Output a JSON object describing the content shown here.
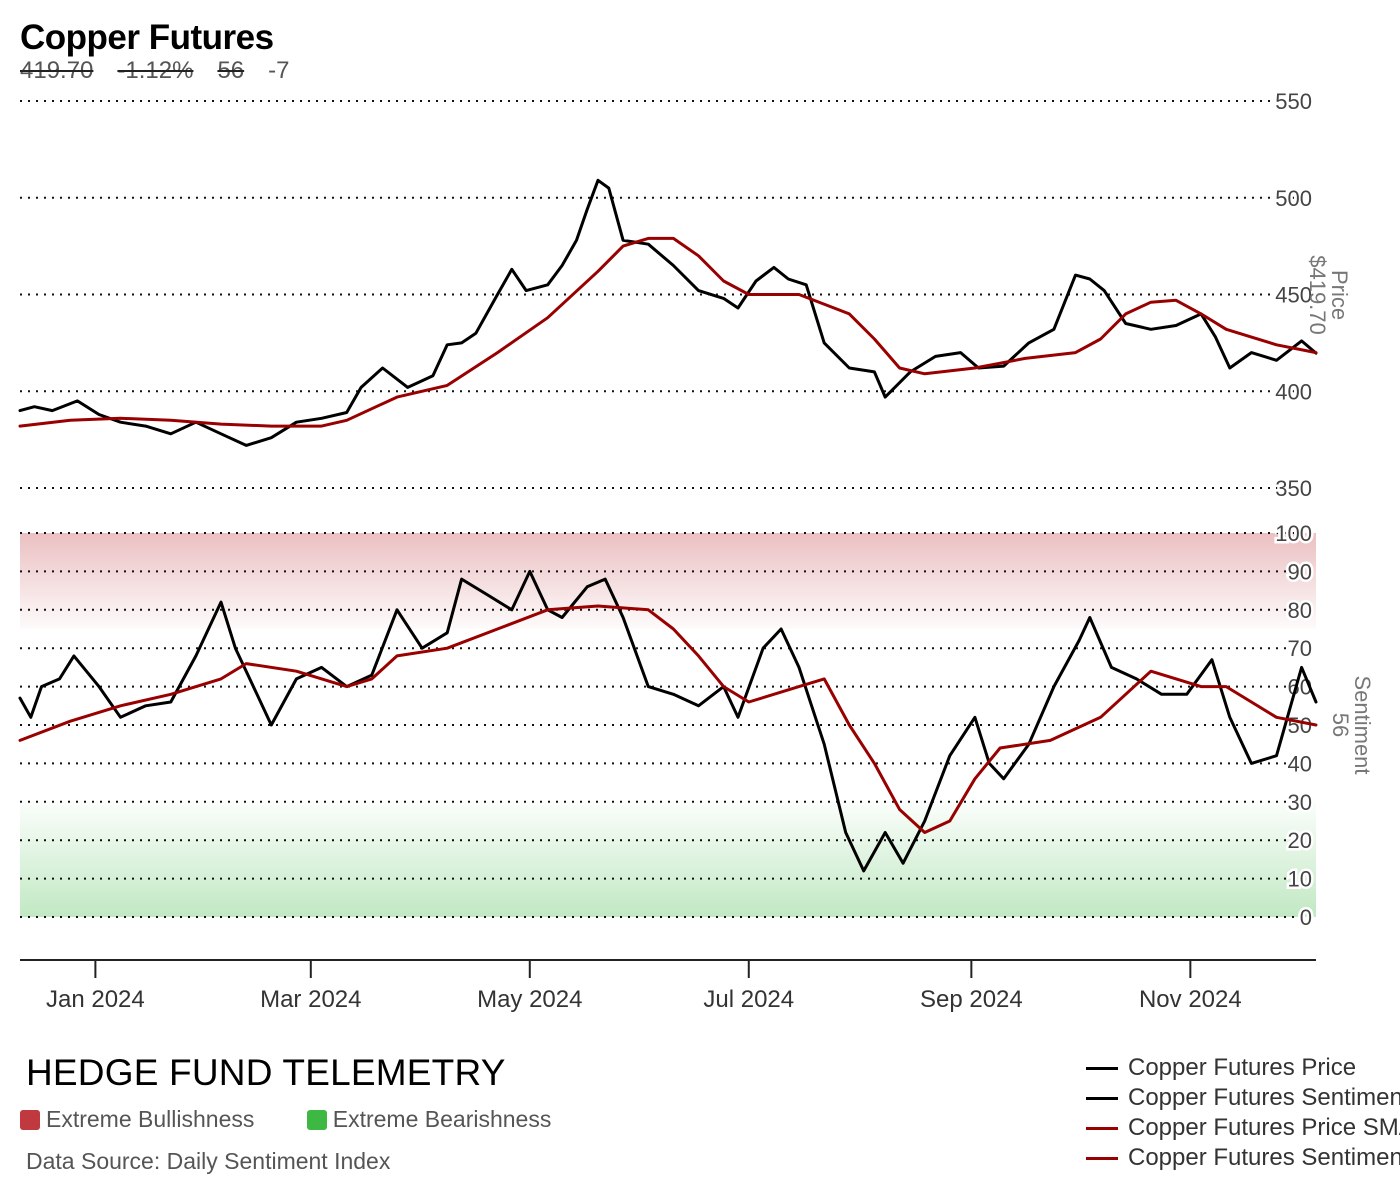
{
  "header": {
    "title": "Copper Futures",
    "stat_price": "419.70",
    "stat_change": "-1.12%",
    "stat_sentiment": "56",
    "stat_sentiment_change": "-7"
  },
  "footer": {
    "brand": "HEDGE FUND TELEMETRY",
    "bullish_label": "Extreme Bullishness",
    "bearish_label": "Extreme Bearishness",
    "source": "Data Source: Daily Sentiment Index",
    "bullish_color": "#c0393f",
    "bearish_color": "#3db843"
  },
  "legend": {
    "items": [
      {
        "label": "Copper Futures Price",
        "color": "#000000"
      },
      {
        "label": "Copper Futures Sentiment",
        "color": "#000000"
      },
      {
        "label": "Copper Futures Price SMA",
        "color": "#990000"
      },
      {
        "label": "Copper Futures Sentiment SMA",
        "color": "#990000"
      }
    ]
  },
  "chart_data": {
    "type": "line",
    "x_start": "2023-12-11",
    "x_end": "2024-12-06",
    "x_ticks": [
      {
        "date": "2024-01-01",
        "label": "Jan 2024"
      },
      {
        "date": "2024-03-01",
        "label": "Mar 2024"
      },
      {
        "date": "2024-05-01",
        "label": "May 2024"
      },
      {
        "date": "2024-07-01",
        "label": "Jul 2024"
      },
      {
        "date": "2024-09-01",
        "label": "Sep 2024"
      },
      {
        "date": "2024-11-01",
        "label": "Nov 2024"
      }
    ],
    "price_panel": {
      "axis_label": "Price",
      "last_value_label": "$419.70",
      "ylim": [
        350,
        550
      ],
      "ticks": [
        550,
        500,
        450,
        400,
        350
      ],
      "grid": "dotted",
      "series": [
        {
          "color": "#000000",
          "points": [
            [
              "2023-12-11",
              390
            ],
            [
              "2023-12-15",
              392
            ],
            [
              "2023-12-20",
              390
            ],
            [
              "2023-12-27",
              395
            ],
            [
              "2024-01-02",
              388
            ],
            [
              "2024-01-08",
              384
            ],
            [
              "2024-01-15",
              382
            ],
            [
              "2024-01-22",
              378
            ],
            [
              "2024-01-29",
              384
            ],
            [
              "2024-02-05",
              378
            ],
            [
              "2024-02-12",
              372
            ],
            [
              "2024-02-19",
              376
            ],
            [
              "2024-02-26",
              384
            ],
            [
              "2024-03-04",
              386
            ],
            [
              "2024-03-11",
              389
            ],
            [
              "2024-03-15",
              402
            ],
            [
              "2024-03-21",
              412
            ],
            [
              "2024-03-28",
              402
            ],
            [
              "2024-04-04",
              408
            ],
            [
              "2024-04-08",
              424
            ],
            [
              "2024-04-12",
              425
            ],
            [
              "2024-04-16",
              430
            ],
            [
              "2024-04-22",
              450
            ],
            [
              "2024-04-26",
              463
            ],
            [
              "2024-04-30",
              452
            ],
            [
              "2024-05-06",
              455
            ],
            [
              "2024-05-10",
              465
            ],
            [
              "2024-05-14",
              478
            ],
            [
              "2024-05-17",
              494
            ],
            [
              "2024-05-20",
              509
            ],
            [
              "2024-05-23",
              505
            ],
            [
              "2024-05-27",
              478
            ],
            [
              "2024-06-03",
              476
            ],
            [
              "2024-06-10",
              465
            ],
            [
              "2024-06-17",
              452
            ],
            [
              "2024-06-24",
              448
            ],
            [
              "2024-06-28",
              443
            ],
            [
              "2024-07-03",
              457
            ],
            [
              "2024-07-08",
              464
            ],
            [
              "2024-07-12",
              458
            ],
            [
              "2024-07-17",
              455
            ],
            [
              "2024-07-22",
              425
            ],
            [
              "2024-07-29",
              412
            ],
            [
              "2024-08-05",
              410
            ],
            [
              "2024-08-08",
              397
            ],
            [
              "2024-08-15",
              410
            ],
            [
              "2024-08-22",
              418
            ],
            [
              "2024-08-29",
              420
            ],
            [
              "2024-09-03",
              412
            ],
            [
              "2024-09-10",
              413
            ],
            [
              "2024-09-17",
              425
            ],
            [
              "2024-09-24",
              432
            ],
            [
              "2024-09-30",
              460
            ],
            [
              "2024-10-04",
              458
            ],
            [
              "2024-10-08",
              452
            ],
            [
              "2024-10-14",
              435
            ],
            [
              "2024-10-21",
              432
            ],
            [
              "2024-10-28",
              434
            ],
            [
              "2024-11-04",
              440
            ],
            [
              "2024-11-08",
              428
            ],
            [
              "2024-11-12",
              412
            ],
            [
              "2024-11-18",
              420
            ],
            [
              "2024-11-25",
              416
            ],
            [
              "2024-12-02",
              426
            ],
            [
              "2024-12-06",
              419.7
            ]
          ]
        },
        {
          "color": "#990000",
          "points": [
            [
              "2023-12-11",
              382
            ],
            [
              "2023-12-25",
              385
            ],
            [
              "2024-01-08",
              386
            ],
            [
              "2024-01-22",
              385
            ],
            [
              "2024-02-05",
              383
            ],
            [
              "2024-02-19",
              382
            ],
            [
              "2024-03-04",
              382
            ],
            [
              "2024-03-11",
              385
            ],
            [
              "2024-03-25",
              397
            ],
            [
              "2024-04-08",
              403
            ],
            [
              "2024-04-22",
              420
            ],
            [
              "2024-05-06",
              438
            ],
            [
              "2024-05-20",
              462
            ],
            [
              "2024-05-27",
              475
            ],
            [
              "2024-06-03",
              479
            ],
            [
              "2024-06-10",
              479
            ],
            [
              "2024-06-17",
              470
            ],
            [
              "2024-06-24",
              457
            ],
            [
              "2024-07-01",
              450
            ],
            [
              "2024-07-15",
              450
            ],
            [
              "2024-07-29",
              440
            ],
            [
              "2024-08-05",
              427
            ],
            [
              "2024-08-12",
              412
            ],
            [
              "2024-08-19",
              409
            ],
            [
              "2024-09-02",
              412
            ],
            [
              "2024-09-16",
              417
            ],
            [
              "2024-09-30",
              420
            ],
            [
              "2024-10-07",
              427
            ],
            [
              "2024-10-14",
              440
            ],
            [
              "2024-10-21",
              446
            ],
            [
              "2024-10-28",
              447
            ],
            [
              "2024-11-04",
              440
            ],
            [
              "2024-11-11",
              432
            ],
            [
              "2024-11-18",
              428
            ],
            [
              "2024-11-25",
              424
            ],
            [
              "2024-12-06",
              420
            ]
          ]
        }
      ]
    },
    "sentiment_panel": {
      "axis_label": "Sentiment",
      "last_value_label": "56",
      "ylim": [
        0,
        100
      ],
      "ticks": [
        100,
        90,
        80,
        70,
        60,
        50,
        40,
        30,
        20,
        10,
        0
      ],
      "extreme_bullish_zone": [
        75,
        100
      ],
      "extreme_bearish_zone": [
        0,
        30
      ],
      "series": [
        {
          "color": "#000000",
          "points": [
            [
              "2023-12-11",
              57
            ],
            [
              "2023-12-14",
              52
            ],
            [
              "2023-12-17",
              60
            ],
            [
              "2023-12-22",
              62
            ],
            [
              "2023-12-26",
              68
            ],
            [
              "2024-01-02",
              60
            ],
            [
              "2024-01-08",
              52
            ],
            [
              "2024-01-15",
              55
            ],
            [
              "2024-01-22",
              56
            ],
            [
              "2024-01-29",
              68
            ],
            [
              "2024-02-05",
              82
            ],
            [
              "2024-02-09",
              70
            ],
            [
              "2024-02-14",
              60
            ],
            [
              "2024-02-19",
              50
            ],
            [
              "2024-02-26",
              62
            ],
            [
              "2024-03-04",
              65
            ],
            [
              "2024-03-11",
              60
            ],
            [
              "2024-03-18",
              63
            ],
            [
              "2024-03-25",
              80
            ],
            [
              "2024-04-01",
              70
            ],
            [
              "2024-04-08",
              74
            ],
            [
              "2024-04-12",
              88
            ],
            [
              "2024-04-19",
              84
            ],
            [
              "2024-04-26",
              80
            ],
            [
              "2024-05-01",
              90
            ],
            [
              "2024-05-06",
              80
            ],
            [
              "2024-05-10",
              78
            ],
            [
              "2024-05-17",
              86
            ],
            [
              "2024-05-22",
              88
            ],
            [
              "2024-05-27",
              78
            ],
            [
              "2024-06-03",
              60
            ],
            [
              "2024-06-10",
              58
            ],
            [
              "2024-06-17",
              55
            ],
            [
              "2024-06-24",
              60
            ],
            [
              "2024-06-28",
              52
            ],
            [
              "2024-07-05",
              70
            ],
            [
              "2024-07-10",
              75
            ],
            [
              "2024-07-15",
              65
            ],
            [
              "2024-07-22",
              45
            ],
            [
              "2024-07-28",
              22
            ],
            [
              "2024-08-02",
              12
            ],
            [
              "2024-08-08",
              22
            ],
            [
              "2024-08-13",
              14
            ],
            [
              "2024-08-19",
              25
            ],
            [
              "2024-08-26",
              42
            ],
            [
              "2024-09-02",
              52
            ],
            [
              "2024-09-06",
              40
            ],
            [
              "2024-09-10",
              36
            ],
            [
              "2024-09-17",
              45
            ],
            [
              "2024-09-24",
              60
            ],
            [
              "2024-10-01",
              72
            ],
            [
              "2024-10-04",
              78
            ],
            [
              "2024-10-10",
              65
            ],
            [
              "2024-10-17",
              62
            ],
            [
              "2024-10-24",
              58
            ],
            [
              "2024-10-31",
              58
            ],
            [
              "2024-11-07",
              67
            ],
            [
              "2024-11-12",
              52
            ],
            [
              "2024-11-18",
              40
            ],
            [
              "2024-11-25",
              42
            ],
            [
              "2024-12-02",
              65
            ],
            [
              "2024-12-06",
              56
            ]
          ]
        },
        {
          "color": "#990000",
          "points": [
            [
              "2023-12-11",
              46
            ],
            [
              "2023-12-25",
              51
            ],
            [
              "2024-01-08",
              55
            ],
            [
              "2024-01-22",
              58
            ],
            [
              "2024-02-05",
              62
            ],
            [
              "2024-02-12",
              66
            ],
            [
              "2024-02-26",
              64
            ],
            [
              "2024-03-11",
              60
            ],
            [
              "2024-03-18",
              62
            ],
            [
              "2024-03-25",
              68
            ],
            [
              "2024-04-08",
              70
            ],
            [
              "2024-04-22",
              75
            ],
            [
              "2024-05-06",
              80
            ],
            [
              "2024-05-20",
              81
            ],
            [
              "2024-06-03",
              80
            ],
            [
              "2024-06-10",
              75
            ],
            [
              "2024-06-17",
              68
            ],
            [
              "2024-06-24",
              60
            ],
            [
              "2024-07-01",
              56
            ],
            [
              "2024-07-15",
              60
            ],
            [
              "2024-07-22",
              62
            ],
            [
              "2024-07-29",
              50
            ],
            [
              "2024-08-05",
              40
            ],
            [
              "2024-08-12",
              28
            ],
            [
              "2024-08-19",
              22
            ],
            [
              "2024-08-26",
              25
            ],
            [
              "2024-09-02",
              36
            ],
            [
              "2024-09-09",
              44
            ],
            [
              "2024-09-23",
              46
            ],
            [
              "2024-10-07",
              52
            ],
            [
              "2024-10-14",
              58
            ],
            [
              "2024-10-21",
              64
            ],
            [
              "2024-11-04",
              60
            ],
            [
              "2024-11-11",
              60
            ],
            [
              "2024-11-18",
              56
            ],
            [
              "2024-11-25",
              52
            ],
            [
              "2024-12-06",
              50
            ]
          ]
        }
      ]
    }
  }
}
